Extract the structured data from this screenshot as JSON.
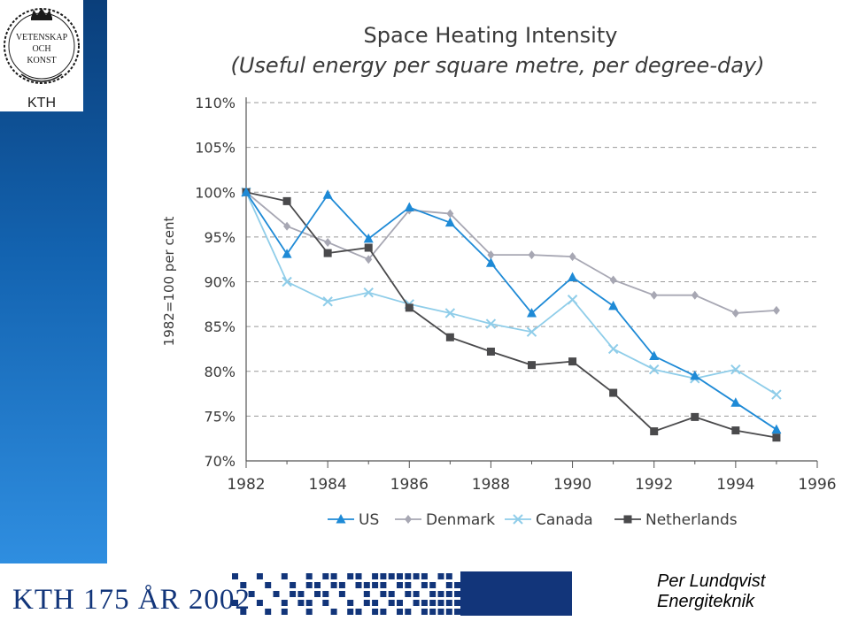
{
  "logo": {
    "line1": "VETENSKAP",
    "line2": "OCH",
    "line3": "KONST",
    "name": "KTH"
  },
  "footer": {
    "anniversary": "KTH 175 ÅR 2002"
  },
  "author": {
    "name": "Per Lundqvist",
    "department": "Energiteknik"
  },
  "colors": {
    "sidebar_blue": "#1363b0",
    "footer_navy": "#12357a",
    "us": "#1e8ad6",
    "denmark": "#a7a7b3",
    "canada": "#8fcde9",
    "netherlands": "#4a4a4c"
  },
  "chart_data": {
    "type": "line",
    "title": "Space Heating Intensity",
    "subtitle": "(Useful energy per square metre, per degree-day)",
    "ylabel": "1982=100 per cent",
    "xlabel": "",
    "x_ticks": [
      "1982",
      "1984",
      "1986",
      "1988",
      "1990",
      "1992",
      "1994",
      "1996"
    ],
    "y_ticks": [
      "70%",
      "75%",
      "80%",
      "85%",
      "90%",
      "95%",
      "100%",
      "105%",
      "110%"
    ],
    "xlim": [
      1982,
      1996
    ],
    "ylim": [
      70,
      110
    ],
    "grid": "horizontal dashed",
    "legend_position": "bottom",
    "x": [
      1982,
      1983,
      1984,
      1985,
      1986,
      1987,
      1988,
      1989,
      1990,
      1991,
      1992,
      1993,
      1994,
      1995
    ],
    "series": [
      {
        "name": "US",
        "marker": "triangle",
        "color": "#1e8ad6",
        "values": [
          100,
          93.1,
          99.7,
          94.8,
          98.3,
          96.6,
          92.1,
          86.5,
          90.5,
          87.3,
          81.7,
          79.5,
          76.5,
          73.5
        ]
      },
      {
        "name": "Denmark",
        "marker": "diamond",
        "color": "#a7a7b3",
        "values": [
          100,
          96.2,
          94.4,
          92.5,
          98.0,
          97.6,
          93.0,
          93.0,
          92.8,
          90.2,
          88.5,
          88.5,
          86.5,
          86.8
        ]
      },
      {
        "name": "Canada",
        "marker": "x",
        "color": "#8fcde9",
        "values": [
          100,
          90.0,
          87.8,
          88.8,
          87.5,
          86.5,
          85.3,
          84.4,
          88.0,
          82.5,
          80.2,
          79.2,
          80.2,
          77.4
        ]
      },
      {
        "name": "Netherlands",
        "marker": "square",
        "color": "#4a4a4c",
        "values": [
          100,
          99.0,
          93.2,
          93.8,
          87.1,
          83.8,
          82.2,
          80.7,
          81.1,
          77.6,
          73.3,
          74.9,
          73.4,
          72.6
        ]
      }
    ]
  }
}
